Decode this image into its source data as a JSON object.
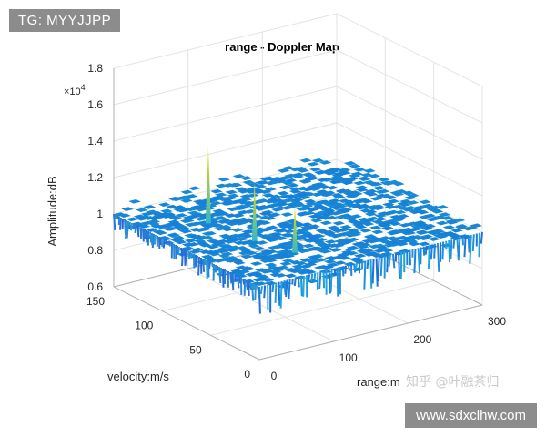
{
  "watermarks": {
    "tag_label": "TG: MYYJJPP",
    "site_label": "www.sdxclhw.com",
    "author_label": "知乎 @叶融茶归"
  },
  "chart_data": {
    "type": "surface",
    "title": "range - Doppler Map",
    "xlabel": "range:m",
    "ylabel": "velocity:m/s",
    "zlabel": "Amplitude:dB",
    "z_exponent_label": "×10",
    "z_exponent_power": "4",
    "xlim": [
      0,
      300
    ],
    "ylim": [
      0,
      150
    ],
    "zlim": [
      6000,
      18000
    ],
    "x_ticks": [
      "0",
      "100",
      "200",
      "300"
    ],
    "y_ticks": [
      "0",
      "50",
      "100",
      "150"
    ],
    "z_ticks": [
      "0.6",
      "0.8",
      "1",
      "1.2",
      "1.4",
      "1.6",
      "1.8"
    ],
    "z_tick_values": [
      6000,
      8000,
      10000,
      12000,
      14000,
      16000,
      18000
    ],
    "noise_floor_db": 10000,
    "grid": true,
    "colormap": "parula",
    "targets": [
      {
        "range": 75,
        "velocity": 110,
        "amplitude": 14000
      },
      {
        "range": 85,
        "velocity": 70,
        "amplitude": 13000
      },
      {
        "range": 100,
        "velocity": 40,
        "amplitude": 12400
      }
    ]
  }
}
